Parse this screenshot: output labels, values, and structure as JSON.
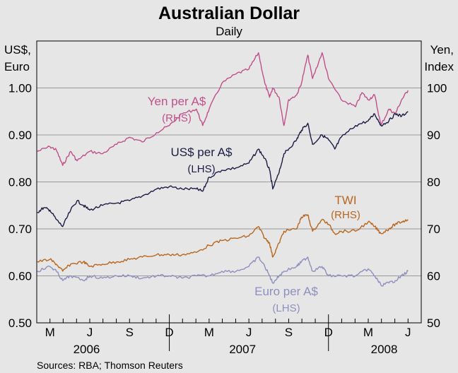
{
  "chart_data": {
    "type": "line",
    "title": "Australian Dollar",
    "subtitle": "Daily",
    "source": "Sources: RBA; Thomson Reuters",
    "left_axis": {
      "label_line1": "US$,",
      "label_line2": "Euro",
      "ylim": [
        0.5,
        1.1
      ],
      "ticks": [
        "0.50",
        "0.60",
        "0.70",
        "0.80",
        "0.90",
        "1.00"
      ],
      "tick_values": [
        0.5,
        0.6,
        0.7,
        0.8,
        0.9,
        1.0
      ]
    },
    "right_axis": {
      "label_line1": "Yen,",
      "label_line2": "Index",
      "ylim": [
        50,
        110
      ],
      "ticks": [
        "50",
        "60",
        "70",
        "80",
        "90",
        "100"
      ],
      "tick_values": [
        50,
        60,
        70,
        80,
        90,
        100
      ]
    },
    "x_axis": {
      "start": 2006.167,
      "end": 2008.583,
      "month_ticks": [
        "M",
        "J",
        "S",
        "D",
        "M",
        "J",
        "S",
        "D",
        "M",
        "J"
      ],
      "month_positions": [
        2006.25,
        2006.5,
        2006.75,
        2007.0,
        2007.25,
        2007.5,
        2007.75,
        2008.0,
        2008.25,
        2008.5
      ],
      "year_labels": [
        "2006",
        "2007",
        "2008"
      ],
      "year_positions": [
        2006.48,
        2007.46,
        2008.35
      ]
    },
    "grid": "horizontal",
    "colors": {
      "yen": "#c0508a",
      "usd": "#1c1c44",
      "twi": "#b8661e",
      "euro": "#8f8fbf",
      "background": "#e6e6e6"
    },
    "series": [
      {
        "name": "Yen per A$",
        "key": "yen",
        "axis": "RHS",
        "label_line1": "Yen per A$",
        "label_line2": "(RHS)",
        "points": [
          [
            2006.17,
            86.5
          ],
          [
            2006.25,
            87.5
          ],
          [
            2006.29,
            86.8
          ],
          [
            2006.33,
            83.5
          ],
          [
            2006.38,
            86.5
          ],
          [
            2006.42,
            84.5
          ],
          [
            2006.5,
            86.5
          ],
          [
            2006.58,
            86.0
          ],
          [
            2006.67,
            88.0
          ],
          [
            2006.75,
            89.5
          ],
          [
            2006.83,
            88.5
          ],
          [
            2006.92,
            90.5
          ],
          [
            2007.0,
            92.0
          ],
          [
            2007.08,
            94.5
          ],
          [
            2007.17,
            95.5
          ],
          [
            2007.21,
            92.0
          ],
          [
            2007.25,
            95.5
          ],
          [
            2007.33,
            101.0
          ],
          [
            2007.42,
            103.0
          ],
          [
            2007.5,
            104.0
          ],
          [
            2007.56,
            107.5
          ],
          [
            2007.6,
            101.0
          ],
          [
            2007.63,
            98.0
          ],
          [
            2007.65,
            100.0
          ],
          [
            2007.69,
            98.0
          ],
          [
            2007.72,
            92.0
          ],
          [
            2007.75,
            97.5
          ],
          [
            2007.8,
            98.5
          ],
          [
            2007.83,
            101.0
          ],
          [
            2007.87,
            107.0
          ],
          [
            2007.9,
            102.0
          ],
          [
            2007.96,
            107.5
          ],
          [
            2008.0,
            102.0
          ],
          [
            2008.08,
            97.5
          ],
          [
            2008.17,
            96.0
          ],
          [
            2008.21,
            99.0
          ],
          [
            2008.25,
            97.5
          ],
          [
            2008.29,
            98.5
          ],
          [
            2008.33,
            92.0
          ],
          [
            2008.38,
            95.5
          ],
          [
            2008.42,
            94.5
          ],
          [
            2008.46,
            97.5
          ],
          [
            2008.5,
            99.5
          ]
        ]
      },
      {
        "name": "US$ per A$",
        "key": "usd",
        "axis": "LHS",
        "label_line1": "US$ per A$",
        "label_line2": "(LHS)",
        "points": [
          [
            2006.17,
            0.735
          ],
          [
            2006.21,
            0.745
          ],
          [
            2006.25,
            0.74
          ],
          [
            2006.29,
            0.72
          ],
          [
            2006.33,
            0.705
          ],
          [
            2006.38,
            0.74
          ],
          [
            2006.42,
            0.76
          ],
          [
            2006.46,
            0.75
          ],
          [
            2006.5,
            0.74
          ],
          [
            2006.58,
            0.75
          ],
          [
            2006.67,
            0.755
          ],
          [
            2006.75,
            0.76
          ],
          [
            2006.83,
            0.77
          ],
          [
            2006.92,
            0.785
          ],
          [
            2007.0,
            0.79
          ],
          [
            2007.08,
            0.785
          ],
          [
            2007.17,
            0.785
          ],
          [
            2007.21,
            0.78
          ],
          [
            2007.25,
            0.81
          ],
          [
            2007.33,
            0.825
          ],
          [
            2007.42,
            0.83
          ],
          [
            2007.5,
            0.84
          ],
          [
            2007.56,
            0.87
          ],
          [
            2007.6,
            0.85
          ],
          [
            2007.63,
            0.825
          ],
          [
            2007.65,
            0.785
          ],
          [
            2007.69,
            0.82
          ],
          [
            2007.72,
            0.86
          ],
          [
            2007.75,
            0.87
          ],
          [
            2007.8,
            0.89
          ],
          [
            2007.83,
            0.91
          ],
          [
            2007.87,
            0.925
          ],
          [
            2007.9,
            0.88
          ],
          [
            2007.96,
            0.9
          ],
          [
            2008.0,
            0.89
          ],
          [
            2008.04,
            0.87
          ],
          [
            2008.08,
            0.895
          ],
          [
            2008.17,
            0.92
          ],
          [
            2008.25,
            0.93
          ],
          [
            2008.29,
            0.945
          ],
          [
            2008.33,
            0.92
          ],
          [
            2008.38,
            0.93
          ],
          [
            2008.42,
            0.945
          ],
          [
            2008.46,
            0.94
          ],
          [
            2008.5,
            0.95
          ]
        ]
      },
      {
        "name": "TWI",
        "key": "twi",
        "axis": "RHS",
        "label_line1": "TWI",
        "label_line2": "(RHS)",
        "points": [
          [
            2006.17,
            63.0
          ],
          [
            2006.25,
            63.5
          ],
          [
            2006.29,
            62.5
          ],
          [
            2006.33,
            61.0
          ],
          [
            2006.38,
            62.5
          ],
          [
            2006.46,
            63.0
          ],
          [
            2006.5,
            62.0
          ],
          [
            2006.58,
            62.5
          ],
          [
            2006.67,
            63.0
          ],
          [
            2006.75,
            63.5
          ],
          [
            2006.83,
            64.0
          ],
          [
            2006.92,
            64.5
          ],
          [
            2007.0,
            64.5
          ],
          [
            2007.08,
            64.5
          ],
          [
            2007.17,
            65.0
          ],
          [
            2007.25,
            66.5
          ],
          [
            2007.33,
            67.5
          ],
          [
            2007.42,
            68.0
          ],
          [
            2007.5,
            68.5
          ],
          [
            2007.56,
            70.5
          ],
          [
            2007.6,
            68.0
          ],
          [
            2007.63,
            67.0
          ],
          [
            2007.65,
            64.0
          ],
          [
            2007.69,
            67.0
          ],
          [
            2007.72,
            69.5
          ],
          [
            2007.8,
            70.0
          ],
          [
            2007.83,
            72.5
          ],
          [
            2007.87,
            73.0
          ],
          [
            2007.9,
            69.5
          ],
          [
            2007.96,
            72.0
          ],
          [
            2008.0,
            71.0
          ],
          [
            2008.04,
            69.0
          ],
          [
            2008.08,
            69.5
          ],
          [
            2008.17,
            69.5
          ],
          [
            2008.25,
            71.5
          ],
          [
            2008.29,
            70.5
          ],
          [
            2008.33,
            69.0
          ],
          [
            2008.38,
            70.0
          ],
          [
            2008.42,
            71.0
          ],
          [
            2008.46,
            71.5
          ],
          [
            2008.5,
            72.0
          ]
        ]
      },
      {
        "name": "Euro per A$",
        "key": "euro",
        "axis": "LHS",
        "label_line1": "Euro per A$",
        "label_line2": "(LHS)",
        "points": [
          [
            2006.17,
            0.61
          ],
          [
            2006.25,
            0.62
          ],
          [
            2006.29,
            0.61
          ],
          [
            2006.33,
            0.59
          ],
          [
            2006.38,
            0.6
          ],
          [
            2006.46,
            0.59
          ],
          [
            2006.5,
            0.6
          ],
          [
            2006.58,
            0.595
          ],
          [
            2006.67,
            0.6
          ],
          [
            2006.75,
            0.6
          ],
          [
            2006.83,
            0.595
          ],
          [
            2006.92,
            0.6
          ],
          [
            2007.0,
            0.6
          ],
          [
            2007.08,
            0.595
          ],
          [
            2007.17,
            0.6
          ],
          [
            2007.25,
            0.6
          ],
          [
            2007.33,
            0.61
          ],
          [
            2007.42,
            0.61
          ],
          [
            2007.5,
            0.62
          ],
          [
            2007.56,
            0.64
          ],
          [
            2007.6,
            0.62
          ],
          [
            2007.63,
            0.6
          ],
          [
            2007.65,
            0.585
          ],
          [
            2007.69,
            0.6
          ],
          [
            2007.72,
            0.61
          ],
          [
            2007.8,
            0.62
          ],
          [
            2007.83,
            0.63
          ],
          [
            2007.87,
            0.64
          ],
          [
            2007.9,
            0.61
          ],
          [
            2007.96,
            0.62
          ],
          [
            2008.0,
            0.6
          ],
          [
            2008.08,
            0.6
          ],
          [
            2008.17,
            0.6
          ],
          [
            2008.25,
            0.615
          ],
          [
            2008.29,
            0.6
          ],
          [
            2008.33,
            0.58
          ],
          [
            2008.38,
            0.585
          ],
          [
            2008.42,
            0.59
          ],
          [
            2008.46,
            0.6
          ],
          [
            2008.5,
            0.61
          ]
        ]
      }
    ]
  }
}
